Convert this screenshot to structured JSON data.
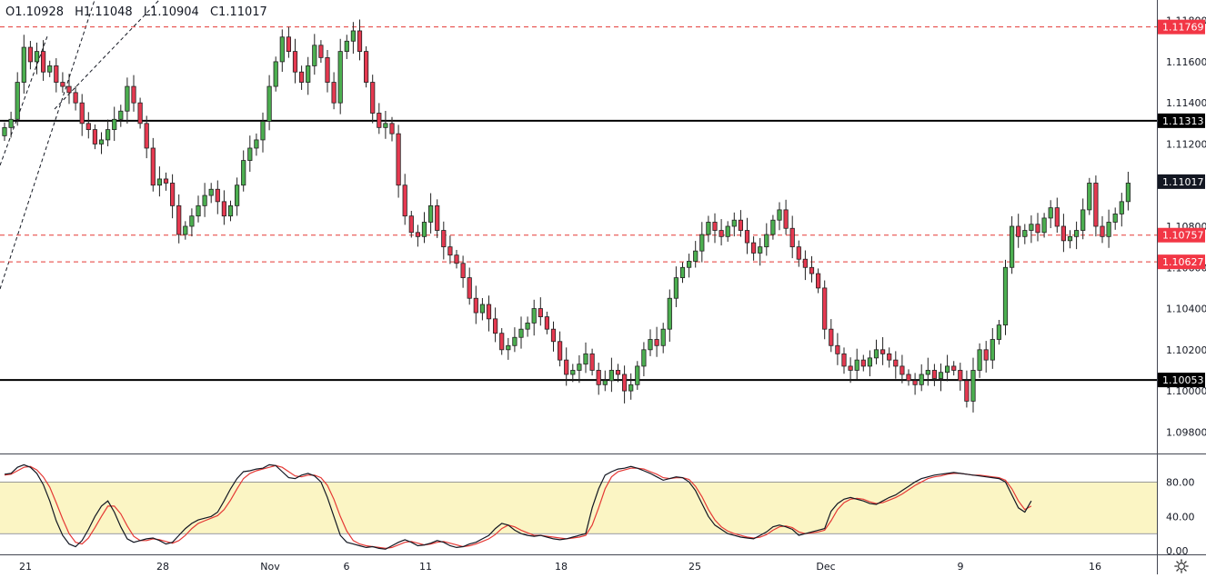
{
  "ohlc": {
    "open": "O1.10928",
    "high": "H1.11048",
    "low": "L1.10904",
    "close": "C1.11017"
  },
  "chart_data": {
    "type": "candlestick",
    "price_axis": {
      "ticks": [
        "1.11800",
        "1.11600",
        "1.11400",
        "1.11200",
        "1.10800",
        "1.10600",
        "1.10400",
        "1.10200",
        "1.10000",
        "1.09800"
      ],
      "tick_values": [
        1.118,
        1.116,
        1.114,
        1.112,
        1.108,
        1.106,
        1.104,
        1.102,
        1.1,
        1.098
      ],
      "range": [
        1.097,
        1.119
      ]
    },
    "time_axis": {
      "labels": [
        "21",
        "28",
        "Nov",
        "6",
        "11",
        "18",
        "25",
        "Dec",
        "9",
        "16"
      ]
    },
    "levels": [
      {
        "label": "1.11769",
        "value": 1.11769,
        "style": "dashed",
        "color": "#e53935"
      },
      {
        "label": "1.11313",
        "value": 1.11313,
        "style": "solid",
        "color": "#000000"
      },
      {
        "label": "1.10757",
        "value": 1.10757,
        "style": "dashed",
        "color": "#e53935"
      },
      {
        "label": "1.10627",
        "value": 1.10627,
        "style": "dashed",
        "color": "#e53935"
      },
      {
        "label": "1.10053",
        "value": 1.10053,
        "style": "solid",
        "color": "#000000"
      }
    ],
    "last_price": {
      "label": "1.11017",
      "value": 1.11017
    },
    "closes": [
      1.1128,
      1.1132,
      1.115,
      1.1167,
      1.116,
      1.1165,
      1.1155,
      1.1158,
      1.115,
      1.1148,
      1.1145,
      1.114,
      1.113,
      1.1127,
      1.112,
      1.1122,
      1.1127,
      1.1132,
      1.1136,
      1.1148,
      1.114,
      1.113,
      1.1118,
      1.11,
      1.1103,
      1.1101,
      1.109,
      1.1076,
      1.108,
      1.1085,
      1.109,
      1.1095,
      1.1098,
      1.1092,
      1.1085,
      1.109,
      1.11,
      1.1112,
      1.1118,
      1.1122,
      1.1131,
      1.1148,
      1.116,
      1.1172,
      1.1165,
      1.1155,
      1.115,
      1.1158,
      1.1168,
      1.1162,
      1.115,
      1.114,
      1.1165,
      1.117,
      1.1175,
      1.1165,
      1.115,
      1.1135,
      1.1128,
      1.113,
      1.1125,
      1.11,
      1.1085,
      1.1077,
      1.1075,
      1.1082,
      1.109,
      1.1078,
      1.107,
      1.1066,
      1.1062,
      1.1055,
      1.1045,
      1.1038,
      1.1042,
      1.1035,
      1.1028,
      1.102,
      1.1022,
      1.1026,
      1.103,
      1.1033,
      1.104,
      1.1036,
      1.103,
      1.1024,
      1.1015,
      1.1008,
      1.101,
      1.1013,
      1.1018,
      1.101,
      1.1003,
      1.1005,
      1.101,
      1.1008,
      1.1,
      1.1003,
      1.1012,
      1.102,
      1.1025,
      1.1022,
      1.103,
      1.1045,
      1.1055,
      1.106,
      1.1063,
      1.1068,
      1.1076,
      1.1082,
      1.1078,
      1.1075,
      1.108,
      1.1083,
      1.1078,
      1.1072,
      1.1067,
      1.107,
      1.1076,
      1.1083,
      1.1088,
      1.1079,
      1.107,
      1.1064,
      1.106,
      1.1057,
      1.105,
      1.103,
      1.1022,
      1.1018,
      1.1012,
      1.101,
      1.1015,
      1.1012,
      1.1016,
      1.102,
      1.1018,
      1.1015,
      1.1012,
      1.1008,
      1.1005,
      1.1003,
      1.1008,
      1.101,
      1.1006,
      1.1009,
      1.1012,
      1.101,
      1.1005,
      1.0995,
      1.101,
      1.102,
      1.1015,
      1.1025,
      1.1032,
      1.106,
      1.108,
      1.1075,
      1.1078,
      1.1081,
      1.1077,
      1.1084,
      1.1089,
      1.108,
      1.1073,
      1.1075,
      1.1078,
      1.1088,
      1.1101,
      1.108,
      1.1075,
      1.1082,
      1.1086,
      1.1092,
      1.1101
    ],
    "stochastic": {
      "levels": [
        80,
        20
      ],
      "ticks": [
        "80.00",
        "40.00",
        "0.00"
      ],
      "tick_values": [
        80,
        40,
        0
      ],
      "range": [
        -4,
        112
      ],
      "k": [
        89,
        90,
        97,
        100,
        97,
        90,
        77,
        58,
        35,
        18,
        8,
        5,
        12,
        25,
        40,
        52,
        58,
        45,
        28,
        14,
        10,
        12,
        14,
        15,
        12,
        8,
        10,
        18,
        26,
        32,
        36,
        38,
        40,
        45,
        58,
        72,
        84,
        92,
        93,
        95,
        96,
        100,
        99,
        92,
        85,
        84,
        88,
        90,
        87,
        80,
        62,
        40,
        18,
        10,
        8,
        6,
        4,
        5,
        3,
        2,
        6,
        10,
        13,
        10,
        6,
        7,
        9,
        12,
        10,
        6,
        4,
        5,
        8,
        10,
        14,
        18,
        26,
        32,
        30,
        24,
        20,
        18,
        17,
        18,
        16,
        14,
        13,
        14,
        16,
        18,
        20,
        50,
        72,
        88,
        92,
        95,
        96,
        98,
        96,
        93,
        90,
        86,
        82,
        84,
        86,
        85,
        80,
        70,
        55,
        40,
        30,
        25,
        20,
        18,
        16,
        15,
        14,
        18,
        22,
        28,
        30,
        28,
        25,
        18,
        20,
        22,
        24,
        26,
        46,
        55,
        60,
        62,
        60,
        58,
        55,
        54,
        58,
        62,
        65,
        70,
        75,
        80,
        84,
        86,
        88,
        89,
        90,
        91,
        90,
        89,
        88,
        87,
        86,
        85,
        84,
        80,
        65,
        50,
        45,
        58
      ],
      "d": [
        88,
        89,
        93,
        97,
        98,
        94,
        86,
        74,
        56,
        37,
        20,
        10,
        8,
        15,
        27,
        40,
        52,
        52,
        43,
        29,
        17,
        12,
        12,
        14,
        13,
        11,
        9,
        12,
        18,
        26,
        32,
        35,
        38,
        41,
        48,
        59,
        72,
        84,
        90,
        93,
        95,
        97,
        99,
        97,
        92,
        87,
        86,
        88,
        88,
        85,
        76,
        60,
        40,
        23,
        12,
        8,
        6,
        5,
        4,
        3,
        4,
        7,
        10,
        11,
        9,
        7,
        8,
        10,
        11,
        9,
        7,
        5,
        6,
        8,
        11,
        14,
        19,
        26,
        30,
        28,
        24,
        21,
        18,
        18,
        17,
        16,
        15,
        14,
        15,
        16,
        18,
        30,
        50,
        72,
        86,
        92,
        94,
        96,
        96,
        95,
        92,
        89,
        85,
        84,
        85,
        85,
        83,
        75,
        63,
        48,
        36,
        28,
        23,
        20,
        18,
        16,
        15,
        16,
        19,
        24,
        28,
        29,
        27,
        22,
        20,
        21,
        22,
        24,
        35,
        48,
        56,
        60,
        61,
        60,
        57,
        55,
        56,
        59,
        62,
        66,
        71,
        76,
        80,
        84,
        86,
        87,
        89,
        90,
        90,
        89,
        88,
        88,
        87,
        86,
        85,
        82,
        72,
        58,
        48,
        52
      ]
    }
  }
}
